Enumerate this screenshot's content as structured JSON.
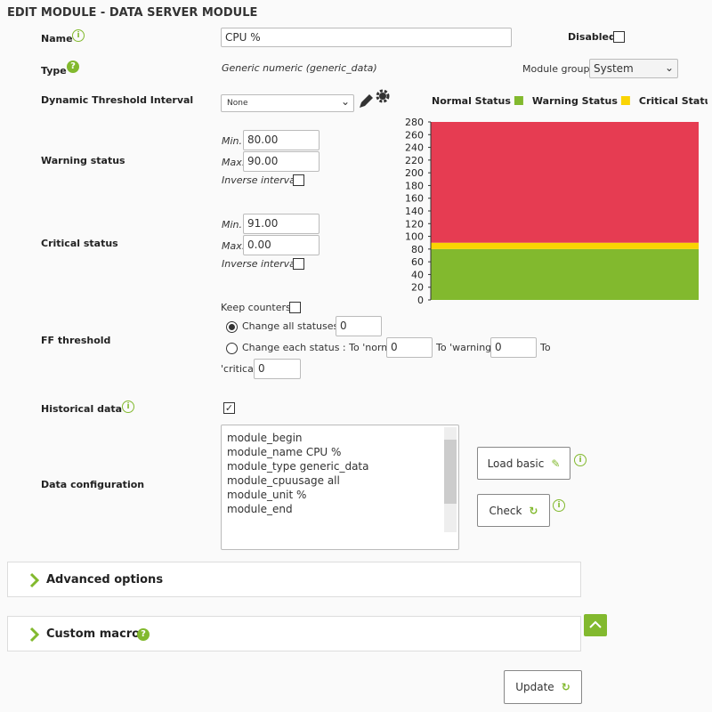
{
  "header": {
    "title": "EDIT MODULE - DATA SERVER MODULE"
  },
  "form": {
    "name": {
      "label": "Name",
      "value": "CPU %"
    },
    "disabled": {
      "label": "Disabled"
    },
    "type": {
      "label": "Type",
      "value": "Generic numeric (generic_data)"
    },
    "module_group": {
      "label": "Module group",
      "value": "System"
    },
    "dynamic_threshold": {
      "label": "Dynamic Threshold Interval",
      "value": "None"
    },
    "warning": {
      "label": "Warning status",
      "min_label": "Min.",
      "min": "80.00",
      "max_label": "Max.",
      "max": "90.00",
      "inverse": "Inverse interval"
    },
    "critical": {
      "label": "Critical status",
      "min_label": "Min.",
      "min": "91.00",
      "max_label": "Max.",
      "max": "0.00",
      "inverse": "Inverse interval"
    },
    "ff": {
      "label": "FF threshold",
      "keep_counters": "Keep counters",
      "all": "Change all statuses :",
      "all_value": "0",
      "each": "Change each status : To 'normal'",
      "normal_value": "0",
      "to_warning": "To 'warning'",
      "warning_value": "0",
      "to": "To",
      "critical_label": "'critical'",
      "critical_value": "0"
    },
    "historical": {
      "label": "Historical data"
    },
    "data_config": {
      "label": "Data configuration",
      "lines": [
        "module_begin",
        "module_name CPU %",
        "module_type generic_data",
        "module_cpuusage all",
        "module_unit %",
        "module_end"
      ]
    },
    "buttons": {
      "load_basic": "Load basic",
      "check": "Check",
      "update": "Update"
    }
  },
  "sections": {
    "advanced": "Advanced options",
    "macros": "Custom macros"
  },
  "chart_data": {
    "type": "bar",
    "stacked": true,
    "series": [
      {
        "name": "Normal Status",
        "color": "#82b92e",
        "values": [
          80
        ]
      },
      {
        "name": "Warning Status",
        "color": "#fad403",
        "values": [
          10
        ]
      },
      {
        "name": "Critical Status",
        "color": "#e63c52",
        "values": [
          190
        ]
      }
    ],
    "ylim": [
      0,
      280
    ],
    "yticks": [
      0,
      20,
      40,
      60,
      80,
      100,
      120,
      140,
      160,
      180,
      200,
      220,
      240,
      260,
      280
    ]
  }
}
